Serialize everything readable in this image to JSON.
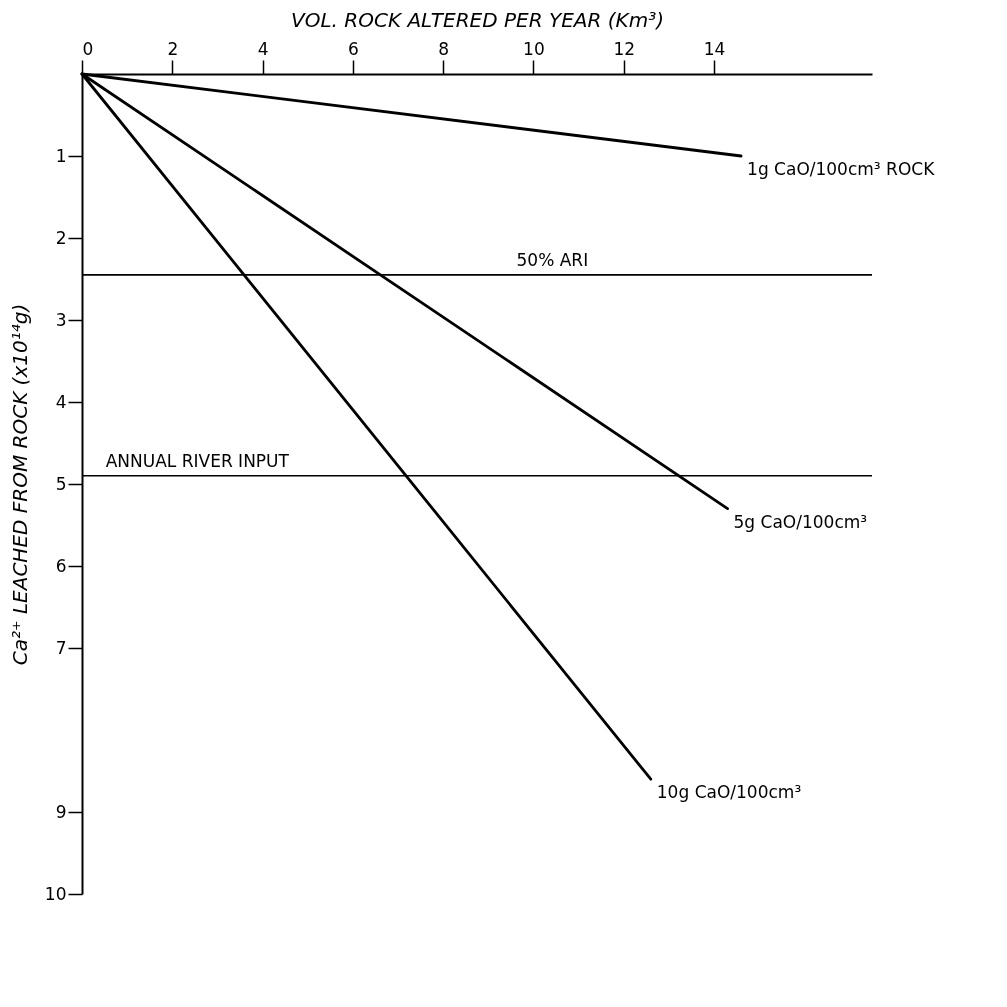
{
  "chart_data": {
    "type": "line",
    "xlabel": "VOL. ROCK ALTERED PER YEAR (Km³)",
    "ylabel": "Ca²⁺ LEACHED FROM ROCK (x10¹⁴g)",
    "xlim": [
      0,
      17.5
    ],
    "xticks": [
      0,
      2,
      4,
      6,
      8,
      10,
      12,
      14
    ],
    "ylim": [
      10,
      0
    ],
    "yticks": [
      1,
      2,
      3,
      4,
      5,
      6,
      7,
      9,
      10
    ],
    "series": [
      {
        "name": "1g CaO/100cm³ ROCK",
        "color": "#000000",
        "x": [
          0,
          14.6
        ],
        "values": [
          0,
          1.0
        ]
      },
      {
        "name": "5g CaO/100cm³",
        "color": "#000000",
        "x": [
          0,
          14.3
        ],
        "values": [
          0,
          5.3
        ]
      },
      {
        "name": "10g CaO/100cm³",
        "color": "#000000",
        "x": [
          0,
          12.6
        ],
        "values": [
          0,
          8.6
        ]
      }
    ],
    "ref_lines": [
      {
        "axis": "y",
        "value": 2.45,
        "label": "50% ARI",
        "color": "#000000"
      },
      {
        "axis": "y",
        "value": 4.9,
        "label": "ANNUAL RIVER INPUT",
        "color": "#000000"
      }
    ],
    "grid": false,
    "marker": "none",
    "line_style": "solid"
  }
}
